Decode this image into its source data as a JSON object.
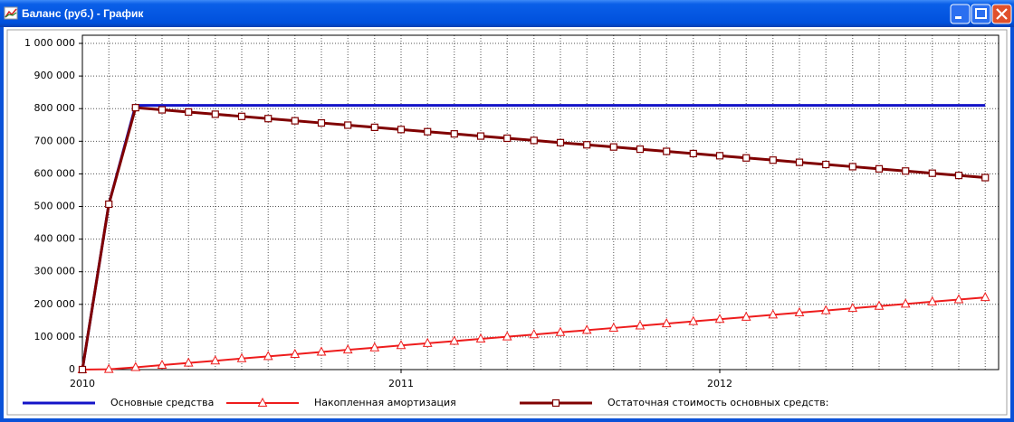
{
  "window": {
    "title": "Баланс (руб.) - График"
  },
  "chart_data": {
    "type": "line",
    "x": [
      2010,
      2010.083,
      2010.167,
      2010.25,
      2010.333,
      2010.417,
      2010.5,
      2010.583,
      2010.667,
      2010.75,
      2010.833,
      2010.917,
      2011,
      2011.083,
      2011.167,
      2011.25,
      2011.333,
      2011.417,
      2011.5,
      2011.583,
      2011.667,
      2011.75,
      2011.833,
      2011.917,
      2012,
      2012.083,
      2012.167,
      2012.25,
      2012.333,
      2012.417,
      2012.5,
      2012.583,
      2012.667,
      2012.75,
      2012.833
    ],
    "xlim": [
      2010,
      2012.875
    ],
    "xticks": [
      2010,
      2011,
      2012
    ],
    "ylim": [
      0,
      1025000
    ],
    "yticks": [
      0,
      {
        "value": 100000,
        "label": "100 000"
      },
      {
        "value": 200000,
        "label": "200 000"
      },
      {
        "value": 300000,
        "label": "300 000"
      },
      {
        "value": 400000,
        "label": "400 000"
      },
      {
        "value": 500000,
        "label": "500 000"
      },
      {
        "value": 600000,
        "label": "600 000"
      },
      {
        "value": 700000,
        "label": "700 000"
      },
      {
        "value": 800000,
        "label": "800 000"
      },
      {
        "value": 900000,
        "label": "900 000"
      },
      {
        "value": 1000000,
        "label": "1 000 000"
      }
    ],
    "grid": true,
    "legend": "bottom",
    "series": [
      {
        "name": "Основные средства",
        "color": "#1414c8",
        "marker": "none",
        "values": [
          0,
          507000,
          810000,
          810000,
          810000,
          810000,
          810000,
          810000,
          810000,
          810000,
          810000,
          810000,
          810000,
          810000,
          810000,
          810000,
          810000,
          810000,
          810000,
          810000,
          810000,
          810000,
          810000,
          810000,
          810000,
          810000,
          810000,
          810000,
          810000,
          810000,
          810000,
          810000,
          810000,
          810000,
          810000
        ]
      },
      {
        "name": "Накопленная амортизация",
        "color": "#ee1c1c",
        "marker": "triangle",
        "values": [
          0,
          1000,
          7000,
          13700,
          20400,
          27100,
          33800,
          40500,
          47200,
          53900,
          60600,
          67300,
          74000,
          80700,
          87400,
          94100,
          100800,
          107500,
          114200,
          120900,
          127600,
          134300,
          141000,
          147700,
          154400,
          161100,
          167800,
          174500,
          181200,
          187900,
          194600,
          201300,
          208000,
          214700,
          221400
        ]
      },
      {
        "name": "Остаточная стоимость основных средств:",
        "color": "#800000",
        "marker": "square",
        "values": [
          0,
          507000,
          803000,
          796300,
          789600,
          782900,
          776200,
          769500,
          762800,
          756100,
          749400,
          742700,
          736000,
          729300,
          722600,
          715900,
          709200,
          702500,
          695800,
          689100,
          682400,
          675700,
          669000,
          662300,
          655600,
          648900,
          642200,
          635500,
          628800,
          622100,
          615400,
          608700,
          602000,
          595300,
          588600
        ]
      }
    ]
  }
}
